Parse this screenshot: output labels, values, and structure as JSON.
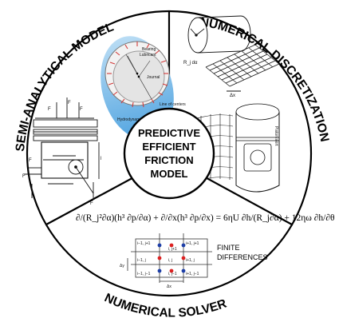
{
  "center": {
    "line1": "PREDICTIVE",
    "line2": "EFFICIENT",
    "line3": "FRICTION",
    "line4": "MODEL"
  },
  "sections": {
    "semi_analytical": "SEMI-ANALYTICAL MODEL",
    "numerical_discretization": "NUMERICAL DISCRETIZATION",
    "numerical_solver": "NUMERICAL SOLVER"
  },
  "bearing": {
    "bearing": "Bearing",
    "lubricant": "Lubricant",
    "journal": "Journal",
    "line_of_centers": "Line of centers",
    "hydrodynamic_pressure": "Hydrodynamic pressure"
  },
  "grid": {
    "finite": "FINITE",
    "differences": "DIFFERENCES"
  },
  "equation": "∂/(R_j²∂α)(h³ ∂p/∂α) + ∂/∂x(h³ ∂p/∂x) = 6ηU ∂h/(R_j∂α) + 12ηω ∂h/∂θ"
}
